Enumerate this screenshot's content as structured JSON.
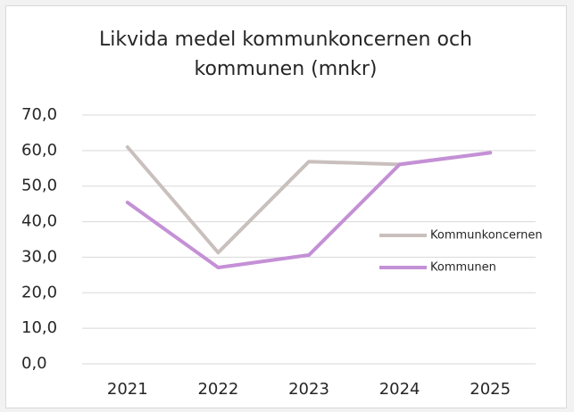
{
  "chart_data": {
    "type": "line",
    "title": "Likvida medel kommunkoncernen och kommunen (mnkr)",
    "categories": [
      "2021",
      "2022",
      "2023",
      "2024",
      "2025"
    ],
    "series": [
      {
        "name": "Kommunkoncernen",
        "color": "#c9c0bd",
        "values": [
          61.0,
          31.3,
          56.9,
          56.1,
          59.4
        ]
      },
      {
        "name": "Kommunen",
        "color": "#c490d6",
        "values": [
          45.4,
          27.1,
          30.6,
          56.1,
          59.4
        ]
      }
    ],
    "ylim": [
      0,
      70
    ],
    "yticks": [
      {
        "value": 0,
        "label": "0,0"
      },
      {
        "value": 10,
        "label": "10,0"
      },
      {
        "value": 20,
        "label": "20,0"
      },
      {
        "value": 30,
        "label": "30,0"
      },
      {
        "value": 40,
        "label": "40,0"
      },
      {
        "value": 50,
        "label": "50,0"
      },
      {
        "value": 60,
        "label": "60,0"
      },
      {
        "value": 70,
        "label": "70,0"
      }
    ],
    "grid": true,
    "legend": "right"
  }
}
